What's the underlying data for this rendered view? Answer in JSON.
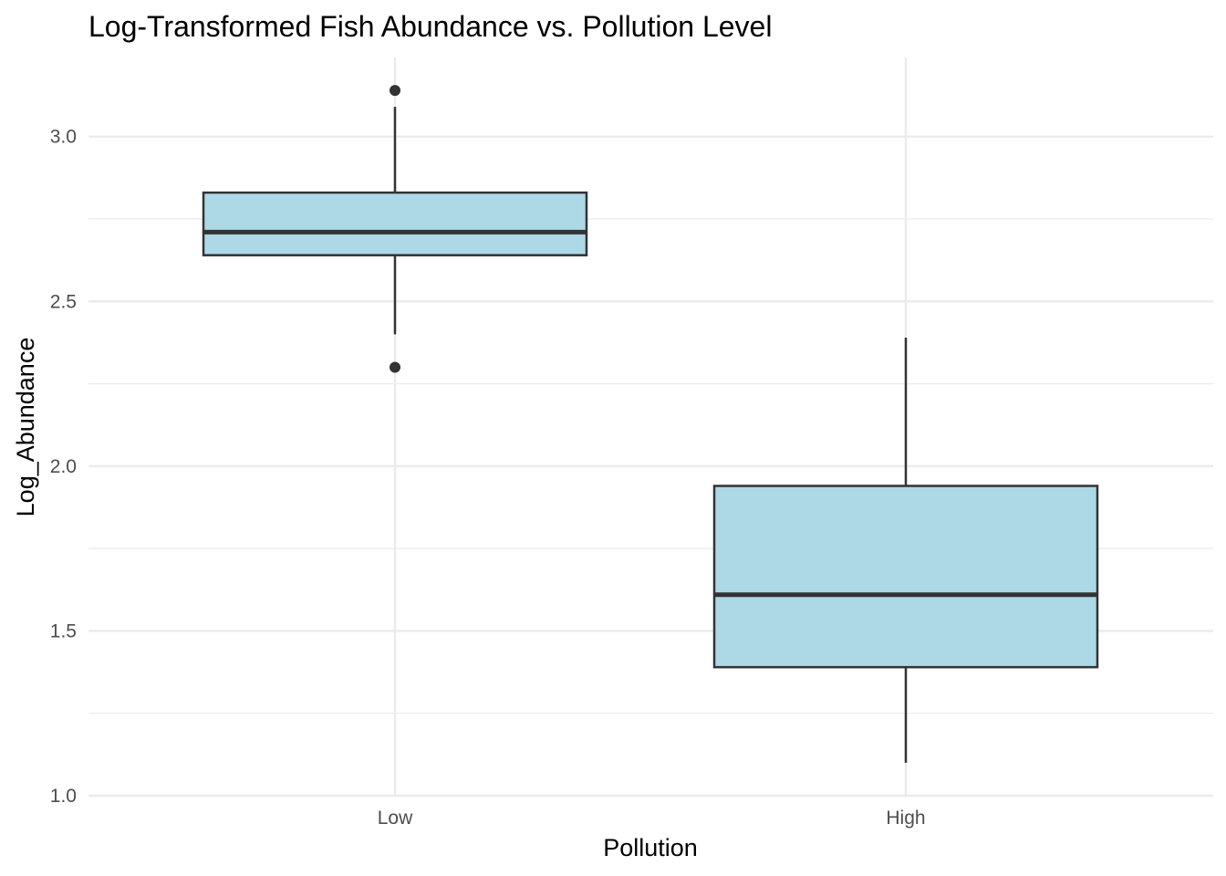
{
  "chart_data": {
    "type": "boxplot",
    "title": "Log-Transformed Fish Abundance vs. Pollution Level",
    "xlabel": "Pollution",
    "ylabel": "Log_Abundance",
    "categories": [
      "Low",
      "High"
    ],
    "ylim": [
      1.0,
      3.24
    ],
    "yticks": [
      1.0,
      1.5,
      2.0,
      2.5,
      3.0
    ],
    "ytick_labels": [
      "1.0",
      "1.5",
      "2.0",
      "2.5",
      "3.0"
    ],
    "grid": true,
    "boxes": [
      {
        "category": "Low",
        "whisker_low": 2.4,
        "q1": 2.64,
        "median": 2.71,
        "q3": 2.83,
        "whisker_high": 3.09,
        "outliers": [
          3.14,
          2.3
        ]
      },
      {
        "category": "High",
        "whisker_low": 1.1,
        "q1": 1.39,
        "median": 1.61,
        "q3": 1.94,
        "whisker_high": 2.39,
        "outliers": []
      }
    ],
    "colors": {
      "box_fill": "#add8e6",
      "box_line": "#333333",
      "grid": "#ebebeb"
    }
  }
}
